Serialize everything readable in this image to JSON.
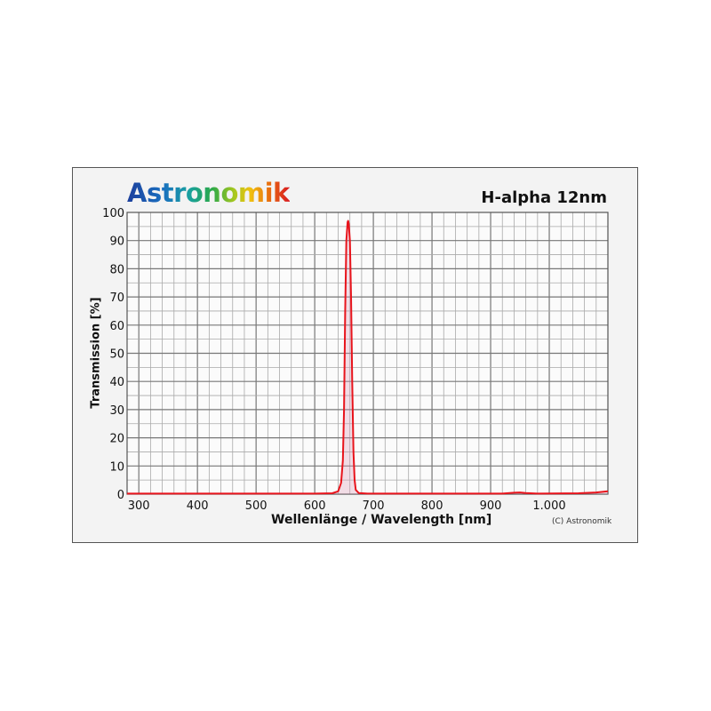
{
  "logo_text": "Astronomik",
  "chart_data": {
    "type": "line",
    "title": "H-alpha 12nm",
    "xlabel": "Wellenlänge / Wavelength [nm]",
    "ylabel": "Transmission [%]",
    "xlim": [
      280,
      1100
    ],
    "ylim": [
      0,
      100
    ],
    "x_ticks": [
      300,
      400,
      500,
      600,
      700,
      800,
      900,
      1000
    ],
    "x_tick_labels": [
      "300",
      "400",
      "500",
      "600",
      "700",
      "800",
      "900",
      "1.000"
    ],
    "y_ticks": [
      0,
      10,
      20,
      30,
      40,
      50,
      60,
      70,
      80,
      90,
      100
    ],
    "y_tick_labels": [
      "0",
      "10",
      "20",
      "30",
      "40",
      "50",
      "60",
      "70",
      "80",
      "90",
      "100"
    ],
    "grid": true,
    "line_color": "#e8141c",
    "series": [
      {
        "x": [
          280,
          400,
          600,
          630,
          640,
          645,
          648,
          650,
          652,
          654,
          656,
          657,
          658,
          660,
          662,
          664,
          666,
          668,
          670,
          675,
          690,
          800,
          920,
          940,
          950,
          960,
          980,
          1050,
          1080,
          1100
        ],
        "y": [
          0.2,
          0.2,
          0.2,
          0.3,
          1,
          4,
          12,
          30,
          65,
          90,
          96.5,
          97,
          96,
          90,
          70,
          40,
          15,
          5,
          1.5,
          0.4,
          0.2,
          0.2,
          0.2,
          0.5,
          0.6,
          0.4,
          0.2,
          0.3,
          0.6,
          1
        ]
      }
    ]
  },
  "copyright": "(C) Astronomik"
}
